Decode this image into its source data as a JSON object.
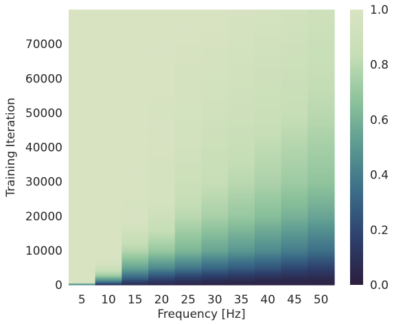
{
  "chart_data": {
    "type": "heatmap",
    "title": "",
    "xlabel": "Frequency [Hz]",
    "ylabel": "Training Iteration",
    "x_categories": [
      "5",
      "10",
      "15",
      "20",
      "25",
      "30",
      "35",
      "40",
      "45",
      "50"
    ],
    "y_range": [
      0,
      80000
    ],
    "y_ticks": [
      0,
      10000,
      20000,
      30000,
      40000,
      50000,
      60000,
      70000
    ],
    "y_tick_labels": [
      "0",
      "10000",
      "20000",
      "30000",
      "40000",
      "50000",
      "60000",
      "70000"
    ],
    "grid": false,
    "colorbar": {
      "range": [
        0.0,
        1.0
      ],
      "ticks": [
        0.0,
        0.2,
        0.4,
        0.6,
        0.8,
        1.0
      ],
      "tick_labels": [
        "0.0",
        "0.2",
        "0.4",
        "0.6",
        "0.8",
        "1.0"
      ],
      "colormap": [
        "#2c1e3d",
        "#2d3f6c",
        "#3a6b87",
        "#5a9891",
        "#8cc29b",
        "#c6deb6",
        "#d8e3c2"
      ]
    },
    "series": [
      {
        "x": "5",
        "iterations": [
          0,
          500,
          1000,
          5000,
          20000,
          40000,
          60000,
          79000
        ],
        "values": [
          0.05,
          0.97,
          1.0,
          1.0,
          1.0,
          1.0,
          1.0,
          1.0
        ]
      },
      {
        "x": "10",
        "iterations": [
          0,
          1000,
          3000,
          5000,
          6000,
          10000,
          40000,
          79000
        ],
        "values": [
          0.05,
          0.4,
          0.75,
          0.88,
          0.97,
          1.0,
          1.0,
          1.0
        ]
      },
      {
        "x": "15",
        "iterations": [
          0,
          2000,
          5000,
          10000,
          15000,
          18000,
          40000,
          79000
        ],
        "values": [
          0.05,
          0.3,
          0.55,
          0.78,
          0.9,
          0.98,
          1.0,
          1.0
        ]
      },
      {
        "x": "20",
        "iterations": [
          0,
          2000,
          5000,
          10000,
          15000,
          20000,
          25000,
          79000
        ],
        "values": [
          0.04,
          0.2,
          0.45,
          0.7,
          0.82,
          0.9,
          0.97,
          1.0
        ]
      },
      {
        "x": "25",
        "iterations": [
          0,
          2000,
          5000,
          10000,
          20000,
          30000,
          40000,
          79000
        ],
        "values": [
          0.03,
          0.15,
          0.38,
          0.62,
          0.8,
          0.88,
          0.94,
          1.0
        ]
      },
      {
        "x": "30",
        "iterations": [
          0,
          2000,
          5000,
          10000,
          20000,
          30000,
          50000,
          79000
        ],
        "values": [
          0.02,
          0.12,
          0.32,
          0.55,
          0.75,
          0.84,
          0.93,
          1.0
        ]
      },
      {
        "x": "35",
        "iterations": [
          0,
          2000,
          5000,
          10000,
          20000,
          30000,
          50000,
          79000
        ],
        "values": [
          0.02,
          0.1,
          0.28,
          0.5,
          0.7,
          0.8,
          0.9,
          0.98
        ]
      },
      {
        "x": "40",
        "iterations": [
          0,
          2000,
          5000,
          10000,
          20000,
          30000,
          50000,
          79000
        ],
        "values": [
          0.02,
          0.08,
          0.25,
          0.45,
          0.65,
          0.76,
          0.87,
          0.96
        ]
      },
      {
        "x": "45",
        "iterations": [
          0,
          2000,
          5000,
          10000,
          20000,
          30000,
          50000,
          79000
        ],
        "values": [
          0.02,
          0.07,
          0.2,
          0.4,
          0.6,
          0.72,
          0.84,
          0.94
        ]
      },
      {
        "x": "50",
        "iterations": [
          0,
          2000,
          5000,
          10000,
          20000,
          30000,
          50000,
          79000
        ],
        "values": [
          0.02,
          0.06,
          0.17,
          0.35,
          0.55,
          0.68,
          0.8,
          0.9
        ]
      }
    ]
  }
}
